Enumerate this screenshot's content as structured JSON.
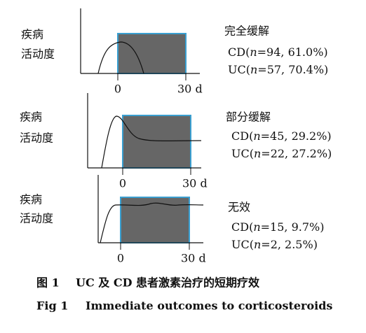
{
  "panels": [
    {
      "ylabel": [
        "疾病",
        "活动度"
      ],
      "start": "0",
      "end": "30 d",
      "outcome": "完全缓解",
      "lines": [
        {
          "prefix": "CD(",
          "var": "n",
          "rest": "=94, 61.0%)"
        },
        {
          "prefix": "UC(",
          "var": "n",
          "rest": "=57, 70.4%)"
        }
      ]
    },
    {
      "ylabel": [
        "疾病",
        "活动度"
      ],
      "start": "0",
      "end": "30 d",
      "outcome": "部分缓解",
      "lines": [
        {
          "prefix": "CD(",
          "var": "n",
          "rest": "=45, 29.2%)"
        },
        {
          "prefix": "UC(",
          "var": "n",
          "rest": "=22, 27.2%)"
        }
      ]
    },
    {
      "ylabel": [
        "疾病",
        "活动度"
      ],
      "start": "0",
      "end": "30 d",
      "outcome": "无效",
      "lines": [
        {
          "prefix": "CD(",
          "var": "n",
          "rest": "=15, 9.7%)"
        },
        {
          "prefix": "UC(",
          "var": "n",
          "rest": "=2, 2.5%)"
        }
      ]
    }
  ],
  "caption": {
    "cn_label": "图 1",
    "cn_text": "UC 及 CD 患者激素治疗的短期疗效",
    "en_label": "Fig 1",
    "en_text": "Immediate outcomes to corticosteroids"
  }
}
